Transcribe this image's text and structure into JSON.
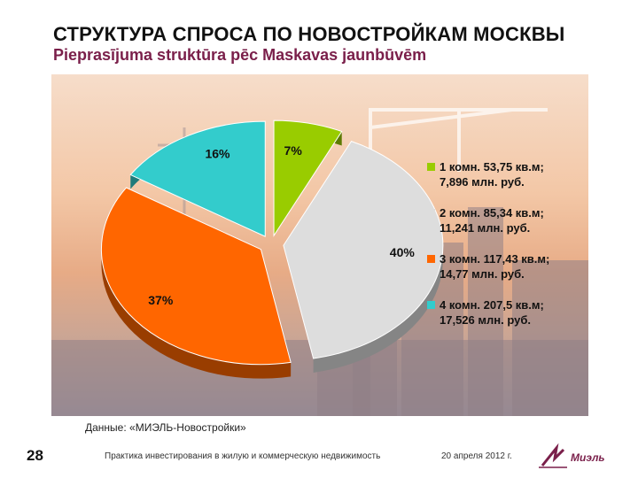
{
  "header": {
    "title": "СТРУКТУРА СПРОСА ПО НОВОСТРОЙКАМ МОСКВЫ",
    "subtitle": "Pieprasījuma struktūra pēc Maskavas jaunbūvēm"
  },
  "chart_data": {
    "type": "pie",
    "style": "3d-exploded",
    "title": "",
    "slices": [
      {
        "label_lines": [
          "1 комн. 53,75 кв.м;",
          "7,896 млн. руб."
        ],
        "value": 7,
        "value_label": "7%",
        "color": "#99cc00"
      },
      {
        "label_lines": [
          "2 комн. 85,34 кв.м;",
          "11,241 млн. руб."
        ],
        "value": 40,
        "value_label": "40%",
        "color": "#dddddd"
      },
      {
        "label_lines": [
          "3 комн. 117,43 кв.м;",
          "14,77 млн. руб."
        ],
        "value": 37,
        "value_label": "37%",
        "color": "#ff6600"
      },
      {
        "label_lines": [
          "4 комн. 207,5 кв.м;",
          "17,526 млн. руб."
        ],
        "value": 16,
        "value_label": "16%",
        "color": "#33cccc"
      }
    ],
    "legend_position": "right"
  },
  "source": "Данные:  «МИЭЛЬ-Новостройки»",
  "footer": {
    "page_number": "28",
    "text": "Практика инвестирования в жилую и коммерческую недвижимость",
    "date": "20 апреля 2012 г.",
    "logo_text": "Миэль"
  }
}
